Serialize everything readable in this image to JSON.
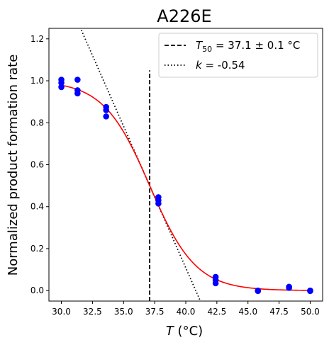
{
  "chart_data": {
    "type": "scatter",
    "title": "A226E",
    "xlabel_italic": "T",
    "xlabel_unit": " (°C)",
    "ylabel": "Normalized product formation rate",
    "xlim": [
      29.0,
      51.0
    ],
    "ylim": [
      -0.05,
      1.25
    ],
    "x_ticks": [
      30.0,
      32.5,
      35.0,
      37.5,
      40.0,
      42.5,
      45.0,
      47.5,
      50.0
    ],
    "x_tick_labels": [
      "30.0",
      "32.5",
      "35.0",
      "37.5",
      "40.0",
      "42.5",
      "45.0",
      "47.5",
      "50.0"
    ],
    "y_ticks": [
      0.0,
      0.2,
      0.4,
      0.6,
      0.8,
      1.0,
      1.2
    ],
    "y_tick_labels": [
      "0.0",
      "0.2",
      "0.4",
      "0.6",
      "0.8",
      "1.0",
      "1.2"
    ],
    "grid": false,
    "legend_position": "top-right",
    "colors": {
      "points": "#0000ff",
      "fit": "#ff0000",
      "t50_line": "#000000",
      "slope_line": "#000000"
    },
    "points": [
      {
        "x": 30.0,
        "y": 1.005
      },
      {
        "x": 30.0,
        "y": 0.99
      },
      {
        "x": 30.0,
        "y": 0.97
      },
      {
        "x": 31.3,
        "y": 1.005
      },
      {
        "x": 31.3,
        "y": 0.955
      },
      {
        "x": 31.3,
        "y": 0.94
      },
      {
        "x": 33.6,
        "y": 0.875
      },
      {
        "x": 33.6,
        "y": 0.86
      },
      {
        "x": 33.6,
        "y": 0.83
      },
      {
        "x": 37.8,
        "y": 0.445
      },
      {
        "x": 37.8,
        "y": 0.43
      },
      {
        "x": 37.8,
        "y": 0.415
      },
      {
        "x": 42.4,
        "y": 0.065
      },
      {
        "x": 42.4,
        "y": 0.05
      },
      {
        "x": 42.4,
        "y": 0.035
      },
      {
        "x": 45.8,
        "y": 0.0
      },
      {
        "x": 45.8,
        "y": -0.002
      },
      {
        "x": 48.3,
        "y": 0.018
      },
      {
        "x": 48.3,
        "y": 0.013
      },
      {
        "x": 50.0,
        "y": 0.0
      },
      {
        "x": 50.0,
        "y": -0.002
      }
    ],
    "fit_curve": {
      "model": "sigmoid",
      "top": 1.0,
      "bottom": 0.0,
      "midpoint": 37.1,
      "slope": -0.54
    },
    "t50_line": {
      "x": 37.1,
      "y_range": [
        -0.05,
        1.05
      ]
    },
    "slope_line": {
      "x_range": [
        31.5,
        41.3
      ]
    },
    "legend": [
      {
        "style": "dashed",
        "prefix_italic": "T",
        "subscript": "50",
        "text": " = 37.1 ± 0.1 °C"
      },
      {
        "style": "dotted",
        "prefix_italic": "k",
        "subscript": "",
        "text": " = -0.54"
      }
    ]
  }
}
